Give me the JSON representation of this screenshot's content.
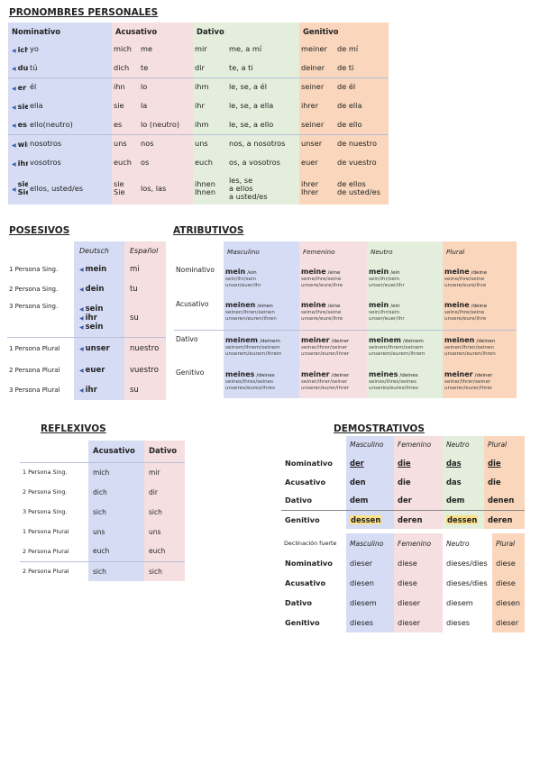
{
  "pronombres": {
    "title": "PRONOMBRES PERSONALES",
    "headers": [
      "Nominativo",
      "Acusativo",
      "Dativo",
      "Genitivo"
    ],
    "rows": [
      {
        "de": "ich",
        "es": "yo",
        "acc_de": "mich",
        "acc_es": "me",
        "dat_de": "mir",
        "dat_es": "me, a mí",
        "gen_de": "meiner",
        "gen_es": "de mí",
        "grp": false
      },
      {
        "de": "du",
        "es": "tú",
        "acc_de": "dich",
        "acc_es": "te",
        "dat_de": "dir",
        "dat_es": "te, a ti",
        "gen_de": "deiner",
        "gen_es": "de ti",
        "grp": false
      },
      {
        "de": "er",
        "es": "él",
        "acc_de": "ihn",
        "acc_es": "lo",
        "dat_de": "ihm",
        "dat_es": "le, se, a él",
        "gen_de": "seiner",
        "gen_es": "de él",
        "grp": true
      },
      {
        "de": "sie",
        "es": "ella",
        "acc_de": "sie",
        "acc_es": "la",
        "dat_de": "ihr",
        "dat_es": "le, se, a ella",
        "gen_de": "ihrer",
        "gen_es": "de ella",
        "grp": false
      },
      {
        "de": "es",
        "es": "ello(neutro)",
        "acc_de": "es",
        "acc_es": "lo (neutro)",
        "dat_de": "ihm",
        "dat_es": "le, se, a ello",
        "gen_de": "seiner",
        "gen_es": "de ello",
        "grp": false
      },
      {
        "de": "wir",
        "es": "nosotros",
        "acc_de": "uns",
        "acc_es": "nos",
        "dat_de": "uns",
        "dat_es": "nos, a nosotros",
        "gen_de": "unser",
        "gen_es": "de nuestro",
        "grp": true
      },
      {
        "de": "ihr",
        "es": "vosotros",
        "acc_de": "euch",
        "acc_es": "os",
        "dat_de": "euch",
        "dat_es": "os, a vosotros",
        "gen_de": "euer",
        "gen_es": "de vuestro",
        "grp": false
      },
      {
        "de": "sie\nSie",
        "es": "ellos, usted/es",
        "acc_de": "sie\nSie",
        "acc_es": "los, las",
        "dat_de": "ihnen\nIhnen",
        "dat_es": "les, se\na ellos\na usted/es",
        "gen_de": "ihrer\nIhrer",
        "gen_es": "de ellos\nde usted/es",
        "grp": false
      }
    ]
  },
  "posesivos": {
    "title": "POSESIVOS",
    "headers": [
      "Deutsch",
      "Español"
    ],
    "rows": [
      {
        "label": "1 Persona Sing.",
        "de": "mein",
        "es": "mi"
      },
      {
        "label": "2 Persona Sing.",
        "de": "dein",
        "es": "tu"
      },
      {
        "label": "3 Persona Sing.",
        "de": "sein\nihr\nsein",
        "es": "su"
      },
      {
        "label": "1 Persona Plural",
        "de": "unser",
        "es": "nuestro"
      },
      {
        "label": "2 Persona Plural",
        "de": "euer",
        "es": "vuestro"
      },
      {
        "label": "3 Persona Plural",
        "de": "ihr",
        "es": "su"
      }
    ]
  },
  "atributivos": {
    "title": "ATRIBUTIVOS",
    "headers": [
      "Masculino",
      "Femenino",
      "Neutro",
      "Plural"
    ],
    "rows": [
      {
        "label": "Nominativo",
        "cells": [
          [
            "mein",
            "/ein",
            "sein/ihr/sein\nunser/euer/ihr"
          ],
          [
            "meine",
            "/eine",
            "seine/ihre/seine\nunsere/eure/ihre"
          ],
          [
            "mein",
            "/ein",
            "sein/ihr/sein\nunser/euer/ihr"
          ],
          [
            "meine",
            "/deine",
            "seine/ihre/seine\nunsere/eure/ihre"
          ]
        ]
      },
      {
        "label": "Acusativo",
        "cells": [
          [
            "meinen",
            "/einen",
            "seinen/ihren/seinen\nunseren/euren/ihren"
          ],
          [
            "meine",
            "/eine",
            "seine/ihre/seine\nunsere/eure/ihre"
          ],
          [
            "mein",
            "/ein",
            "sein/ihr/sein\nunser/euer/ihr"
          ],
          [
            "meine",
            "/deine",
            "seine/ihre/seine\nunsere/eure/ihre"
          ]
        ]
      },
      {
        "label": "Dativo",
        "cells": [
          [
            "meinem",
            "/deinem",
            "seinem/ihrem/seinem\nunserem/eurem/ihrem"
          ],
          [
            "meiner",
            "/deiner",
            "seiner/ihrer/seiner\nunserer/eurer/ihrer"
          ],
          [
            "meinem",
            "/deinem",
            "seinem/ihrem/seinem\nunserem/eurem/ihrem"
          ],
          [
            "meinen",
            "/deinen",
            "seinen/ihren/seinen\nunseren/euren/ihren"
          ]
        ]
      },
      {
        "label": "Genitivo",
        "cells": [
          [
            "meines",
            "/deines",
            "seines/ihres/seines\nunseres/eures/ihres"
          ],
          [
            "meiner",
            "/deiner",
            "seiner/ihrer/seiner\nunserer/eurer/ihrer"
          ],
          [
            "meines",
            "/deines",
            "seines/ihres/seines\nunseres/eures/ihres"
          ],
          [
            "meiner",
            "/deiner",
            "seiner/ihrer/seiner\nunserer/eurer/ihrer"
          ]
        ]
      }
    ]
  },
  "reflexivos": {
    "title": "REFLEXIVOS",
    "headers": [
      "Acusativo",
      "Dativo"
    ],
    "rows": [
      {
        "label": "1 Persona Sing.",
        "acc": "mich",
        "dat": "mir"
      },
      {
        "label": "2 Persona Sing.",
        "acc": "dich",
        "dat": "dir"
      },
      {
        "label": "3 Persona Sing.",
        "acc": "sich",
        "dat": "sich"
      },
      {
        "label": "1 Persona Plural",
        "acc": "uns",
        "dat": "uns"
      },
      {
        "label": "2 Persona Plural",
        "acc": "euch",
        "dat": "euch"
      },
      {
        "label": "2 Persona Plural",
        "acc": "sich",
        "dat": "sich"
      }
    ]
  },
  "demostrativos": {
    "title": "DEMOSTRATIVOS",
    "headers": [
      "Masculino",
      "Femenino",
      "Neutro",
      "Plural"
    ],
    "rows": [
      {
        "label": "Nominativo",
        "cells": [
          "der",
          "die",
          "das",
          "die"
        ]
      },
      {
        "label": "Acusativo",
        "cells": [
          "den",
          "die",
          "das",
          "die"
        ]
      },
      {
        "label": "Dativo",
        "cells": [
          "dem",
          "der",
          "dem",
          "denen"
        ]
      },
      {
        "label": "Genitivo",
        "cells": [
          "dessen",
          "deren",
          "dessen",
          "deren"
        ]
      }
    ],
    "fuerte_header": "Declinación fuerte",
    "fuerte_rows": [
      {
        "label": "Nominativo",
        "cells": [
          "dieser",
          "diese",
          "dieses/dies",
          "diese"
        ]
      },
      {
        "label": "Acusativo",
        "cells": [
          "diesen",
          "diese",
          "dieses/dies",
          "diese"
        ]
      },
      {
        "label": "Dativo",
        "cells": [
          "diesem",
          "dieser",
          "diesem",
          "diesen"
        ]
      },
      {
        "label": "Genitivo",
        "cells": [
          "dieses",
          "dieser",
          "dieses",
          "dieser"
        ]
      }
    ]
  },
  "colors": {
    "blue": "#d6dcf4",
    "pink": "#f5dfe0",
    "green": "#e3efdc",
    "orange": "#f9d6bc",
    "highlight": "#fbe08a"
  }
}
